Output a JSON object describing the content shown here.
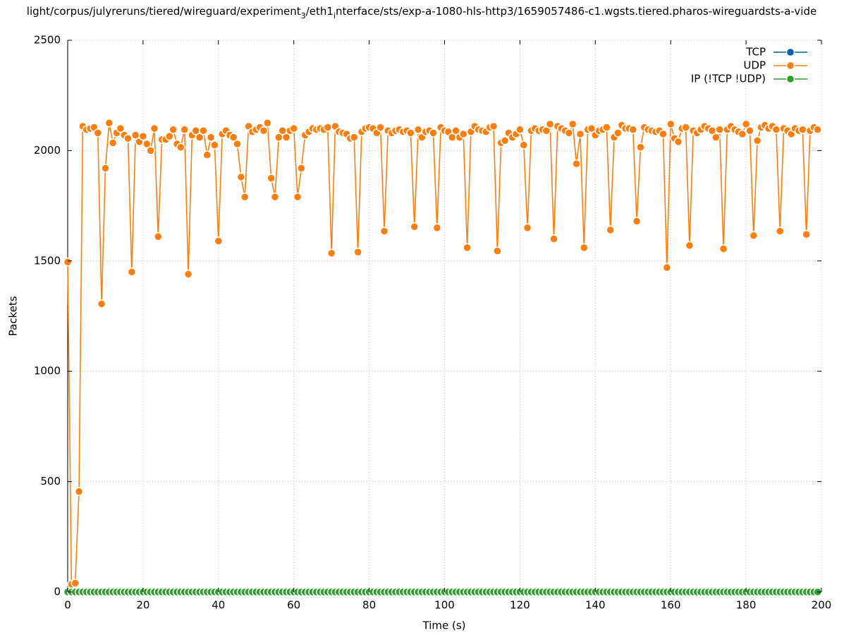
{
  "chart_data": {
    "type": "line",
    "title": [
      "light/corpus/julyreruns/tiered/wireguard/experiment",
      "3",
      "/eth1",
      "i",
      "nterface/sts/exp-a-1080-hls-http3/1659057486-c1.wgsts.tiered.pharos-wireguardsts-a-vide"
    ],
    "xlabel": "Time (s)",
    "ylabel": "Packets",
    "xlim": [
      0,
      200
    ],
    "xticks": [
      0,
      20,
      40,
      60,
      80,
      100,
      120,
      140,
      160,
      180,
      200
    ],
    "ylim": [
      0,
      2500
    ],
    "yticks": [
      0,
      500,
      1000,
      1500,
      2000,
      2500
    ],
    "grid": true,
    "legend": "top-right",
    "x": [
      0,
      1,
      2,
      3,
      4,
      5,
      6,
      7,
      8,
      9,
      10,
      11,
      12,
      13,
      14,
      15,
      16,
      17,
      18,
      19,
      20,
      21,
      22,
      23,
      24,
      25,
      26,
      27,
      28,
      29,
      30,
      31,
      32,
      33,
      34,
      35,
      36,
      37,
      38,
      39,
      40,
      41,
      42,
      43,
      44,
      45,
      46,
      47,
      48,
      49,
      50,
      51,
      52,
      53,
      54,
      55,
      56,
      57,
      58,
      59,
      60,
      61,
      62,
      63,
      64,
      65,
      66,
      67,
      68,
      69,
      70,
      71,
      72,
      73,
      74,
      75,
      76,
      77,
      78,
      79,
      80,
      81,
      82,
      83,
      84,
      85,
      86,
      87,
      88,
      89,
      90,
      91,
      92,
      93,
      94,
      95,
      96,
      97,
      98,
      99,
      100,
      101,
      102,
      103,
      104,
      105,
      106,
      107,
      108,
      109,
      110,
      111,
      112,
      113,
      114,
      115,
      116,
      117,
      118,
      119,
      120,
      121,
      122,
      123,
      124,
      125,
      126,
      127,
      128,
      129,
      130,
      131,
      132,
      133,
      134,
      135,
      136,
      137,
      138,
      139,
      140,
      141,
      142,
      143,
      144,
      145,
      146,
      147,
      148,
      149,
      150,
      151,
      152,
      153,
      154,
      155,
      156,
      157,
      158,
      159,
      160,
      161,
      162,
      163,
      164,
      165,
      166,
      167,
      168,
      169,
      170,
      171,
      172,
      173,
      174,
      175,
      176,
      177,
      178,
      179,
      180,
      181,
      182,
      183,
      184,
      185,
      186,
      187,
      188,
      189,
      190,
      191,
      192,
      193,
      194,
      195,
      196,
      197,
      198,
      199
    ],
    "series": [
      {
        "name": "TCP",
        "color": "#0060ad",
        "values": [
          0,
          0,
          0,
          0,
          0,
          0,
          0,
          0,
          0,
          0,
          0,
          0,
          0,
          0,
          0,
          0,
          0,
          0,
          0,
          0,
          0,
          0,
          0,
          0,
          0,
          0,
          0,
          0,
          0,
          0,
          0,
          0,
          0,
          0,
          0,
          0,
          0,
          0,
          0,
          0,
          0,
          0,
          0,
          0,
          0,
          0,
          0,
          0,
          0,
          0,
          0,
          0,
          0,
          0,
          0,
          0,
          0,
          0,
          0,
          0,
          0,
          0,
          0,
          0,
          0,
          0,
          0,
          0,
          0,
          0,
          0,
          0,
          0,
          0,
          0,
          0,
          0,
          0,
          0,
          0,
          0,
          0,
          0,
          0,
          0,
          0,
          0,
          0,
          0,
          0,
          0,
          0,
          0,
          0,
          0,
          0,
          0,
          0,
          0,
          0,
          0,
          0,
          0,
          0,
          0,
          0,
          0,
          0,
          0,
          0,
          0,
          0,
          0,
          0,
          0,
          0,
          0,
          0,
          0,
          0,
          0,
          0,
          0,
          0,
          0,
          0,
          0,
          0,
          0,
          0,
          0,
          0,
          0,
          0,
          0,
          0,
          0,
          0,
          0,
          0,
          0,
          0,
          0,
          0,
          0,
          0,
          0,
          0,
          0,
          0,
          0,
          0,
          0,
          0,
          0,
          0,
          0,
          0,
          0,
          0,
          0,
          0,
          0,
          0,
          0,
          0,
          0,
          0,
          0,
          0,
          0,
          0,
          0,
          0,
          0,
          0,
          0,
          0,
          0,
          0,
          0,
          0,
          0,
          0,
          0,
          0,
          0,
          0,
          0,
          0,
          0,
          0,
          0,
          0,
          0,
          0,
          0,
          0,
          0,
          0
        ]
      },
      {
        "name": "UDP",
        "color": "#ff7f0e",
        "values": [
          1495,
          35,
          40,
          455,
          2110,
          2095,
          2100,
          2105,
          2080,
          1305,
          1920,
          2125,
          2035,
          2080,
          2100,
          2070,
          2055,
          1450,
          2070,
          2040,
          2065,
          2030,
          2000,
          2100,
          1610,
          2050,
          2050,
          2065,
          2095,
          2030,
          2015,
          2095,
          1440,
          2070,
          2090,
          2060,
          2090,
          1980,
          2060,
          2025,
          1590,
          2075,
          2090,
          2070,
          2060,
          2030,
          1880,
          1790,
          2110,
          2085,
          2095,
          2105,
          2090,
          2125,
          1875,
          1790,
          2060,
          2090,
          2060,
          2090,
          2100,
          1790,
          1920,
          2070,
          2085,
          2100,
          2095,
          2100,
          2095,
          2105,
          1535,
          2110,
          2085,
          2080,
          2075,
          2055,
          2060,
          1540,
          2085,
          2100,
          2105,
          2100,
          2080,
          2105,
          1635,
          2090,
          2080,
          2090,
          2095,
          2085,
          2090,
          2080,
          1655,
          2095,
          2060,
          2085,
          2090,
          2080,
          1650,
          2105,
          2090,
          2085,
          2060,
          2090,
          2060,
          2075,
          1560,
          2085,
          2110,
          2095,
          2090,
          2085,
          2105,
          2110,
          1545,
          2035,
          2045,
          2080,
          2060,
          2075,
          2095,
          2025,
          1650,
          2090,
          2100,
          2090,
          2095,
          2090,
          2120,
          1600,
          2110,
          2100,
          2090,
          2080,
          2120,
          1940,
          2075,
          1560,
          2095,
          2100,
          2070,
          2090,
          2095,
          2105,
          1640,
          2060,
          2080,
          2115,
          2100,
          2100,
          2095,
          1680,
          2015,
          2105,
          2095,
          2090,
          2085,
          2090,
          2075,
          1470,
          2120,
          2055,
          2040,
          2100,
          2105,
          1570,
          2090,
          2080,
          2095,
          2110,
          2100,
          2090,
          2060,
          2095,
          1555,
          2095,
          2110,
          2095,
          2085,
          2075,
          2120,
          2090,
          1615,
          2045,
          2105,
          2115,
          2100,
          2110,
          2095,
          1635,
          2100,
          2090,
          2075,
          2100,
          2090,
          2095,
          1620,
          2090,
          2105,
          2095
        ]
      },
      {
        "name": "IP (!TCP  !UDP)",
        "color": "#2ca02c",
        "values": [
          0,
          0,
          0,
          0,
          0,
          0,
          0,
          0,
          0,
          0,
          0,
          0,
          0,
          0,
          0,
          0,
          0,
          0,
          0,
          0,
          0,
          0,
          0,
          0,
          0,
          0,
          0,
          0,
          0,
          0,
          0,
          0,
          0,
          0,
          0,
          0,
          0,
          0,
          0,
          0,
          0,
          0,
          0,
          0,
          0,
          0,
          0,
          0,
          0,
          0,
          0,
          0,
          0,
          0,
          0,
          0,
          0,
          0,
          0,
          0,
          0,
          0,
          0,
          0,
          0,
          0,
          0,
          0,
          0,
          0,
          0,
          0,
          0,
          0,
          0,
          0,
          0,
          0,
          0,
          0,
          0,
          0,
          0,
          0,
          0,
          0,
          0,
          0,
          0,
          0,
          0,
          0,
          0,
          0,
          0,
          0,
          0,
          0,
          0,
          0,
          0,
          0,
          0,
          0,
          0,
          0,
          0,
          0,
          0,
          0,
          0,
          0,
          0,
          0,
          0,
          0,
          0,
          0,
          0,
          0,
          0,
          0,
          0,
          0,
          0,
          0,
          0,
          0,
          0,
          0,
          0,
          0,
          0,
          0,
          0,
          0,
          0,
          0,
          0,
          0,
          0,
          0,
          0,
          0,
          0,
          0,
          0,
          0,
          0,
          0,
          0,
          0,
          0,
          0,
          0,
          0,
          0,
          0,
          0,
          0,
          0,
          0,
          0,
          0,
          0,
          0,
          0,
          0,
          0,
          0,
          0,
          0,
          0,
          0,
          0,
          0,
          0,
          0,
          0,
          0,
          0,
          0,
          0,
          0,
          0,
          0,
          0,
          0,
          0,
          0,
          0,
          0,
          0,
          0,
          0,
          0,
          0,
          0,
          0,
          0
        ]
      }
    ]
  }
}
